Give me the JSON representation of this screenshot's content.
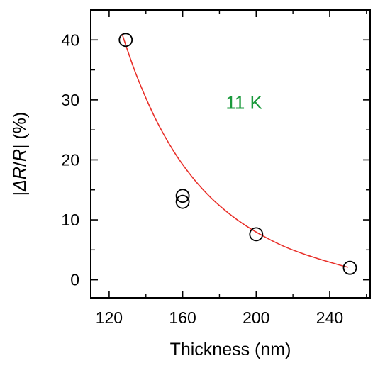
{
  "chart_data": {
    "type": "scatter",
    "title": "",
    "xlabel": "Thickness (nm)",
    "ylabel_parts": [
      "|",
      "Δ",
      "R",
      "/",
      "R",
      "| (%)"
    ],
    "xlim": [
      110,
      262
    ],
    "ylim": [
      -3,
      45
    ],
    "xticks": [
      120,
      160,
      200,
      240
    ],
    "xticks_minor": [
      140,
      180,
      220,
      260
    ],
    "yticks": [
      0,
      10,
      20,
      30,
      40
    ],
    "ytick_minor_step": 5,
    "grid": false,
    "legend": "none",
    "annotation": {
      "text": "11 K",
      "color": "#1a9a3c",
      "x": 195,
      "y": 28.5
    },
    "points": [
      {
        "x": 129,
        "y": 40
      },
      {
        "x": 160,
        "y": 14
      },
      {
        "x": 160,
        "y": 13
      },
      {
        "x": 200,
        "y": 7.6
      },
      {
        "x": 251,
        "y": 2
      }
    ],
    "fit_curve": {
      "color": "#e8302a",
      "x": [
        127,
        135,
        145,
        155,
        165,
        175,
        185,
        195,
        205,
        215,
        225,
        235,
        245,
        250
      ],
      "y": [
        41,
        34.0,
        27.0,
        21.5,
        17.2,
        13.8,
        11.1,
        8.9,
        7.1,
        5.6,
        4.4,
        3.4,
        2.5,
        2.1
      ]
    }
  }
}
